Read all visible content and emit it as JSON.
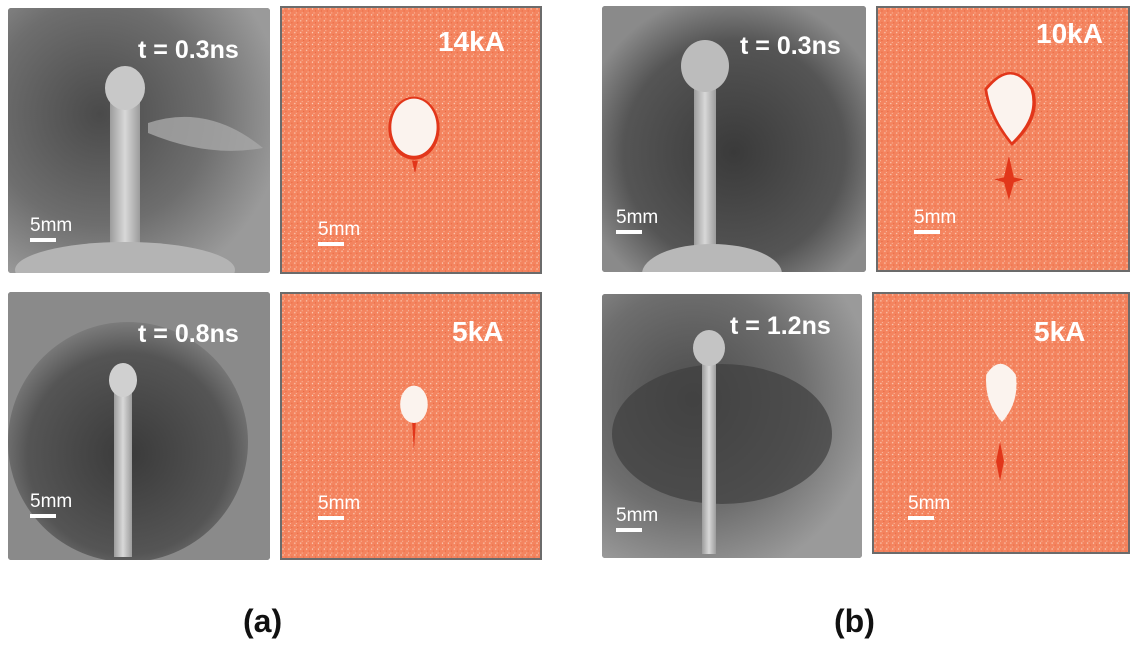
{
  "figure": {
    "caption_a": "(a)",
    "caption_b": "(b)",
    "scale_label": "5mm",
    "panels_a": {
      "top_time": "t = 0.3ns",
      "top_current": "14kA",
      "bottom_time": "t = 0.8ns",
      "bottom_current": "5kA"
    },
    "panels_b": {
      "top_time": "t = 0.3ns",
      "top_current": "10kA",
      "bottom_time": "t = 1.2ns",
      "bottom_current": "5kA"
    }
  },
  "colors": {
    "simulation_background": "#f4845f",
    "radiograph_background": "#7c7c7c"
  }
}
